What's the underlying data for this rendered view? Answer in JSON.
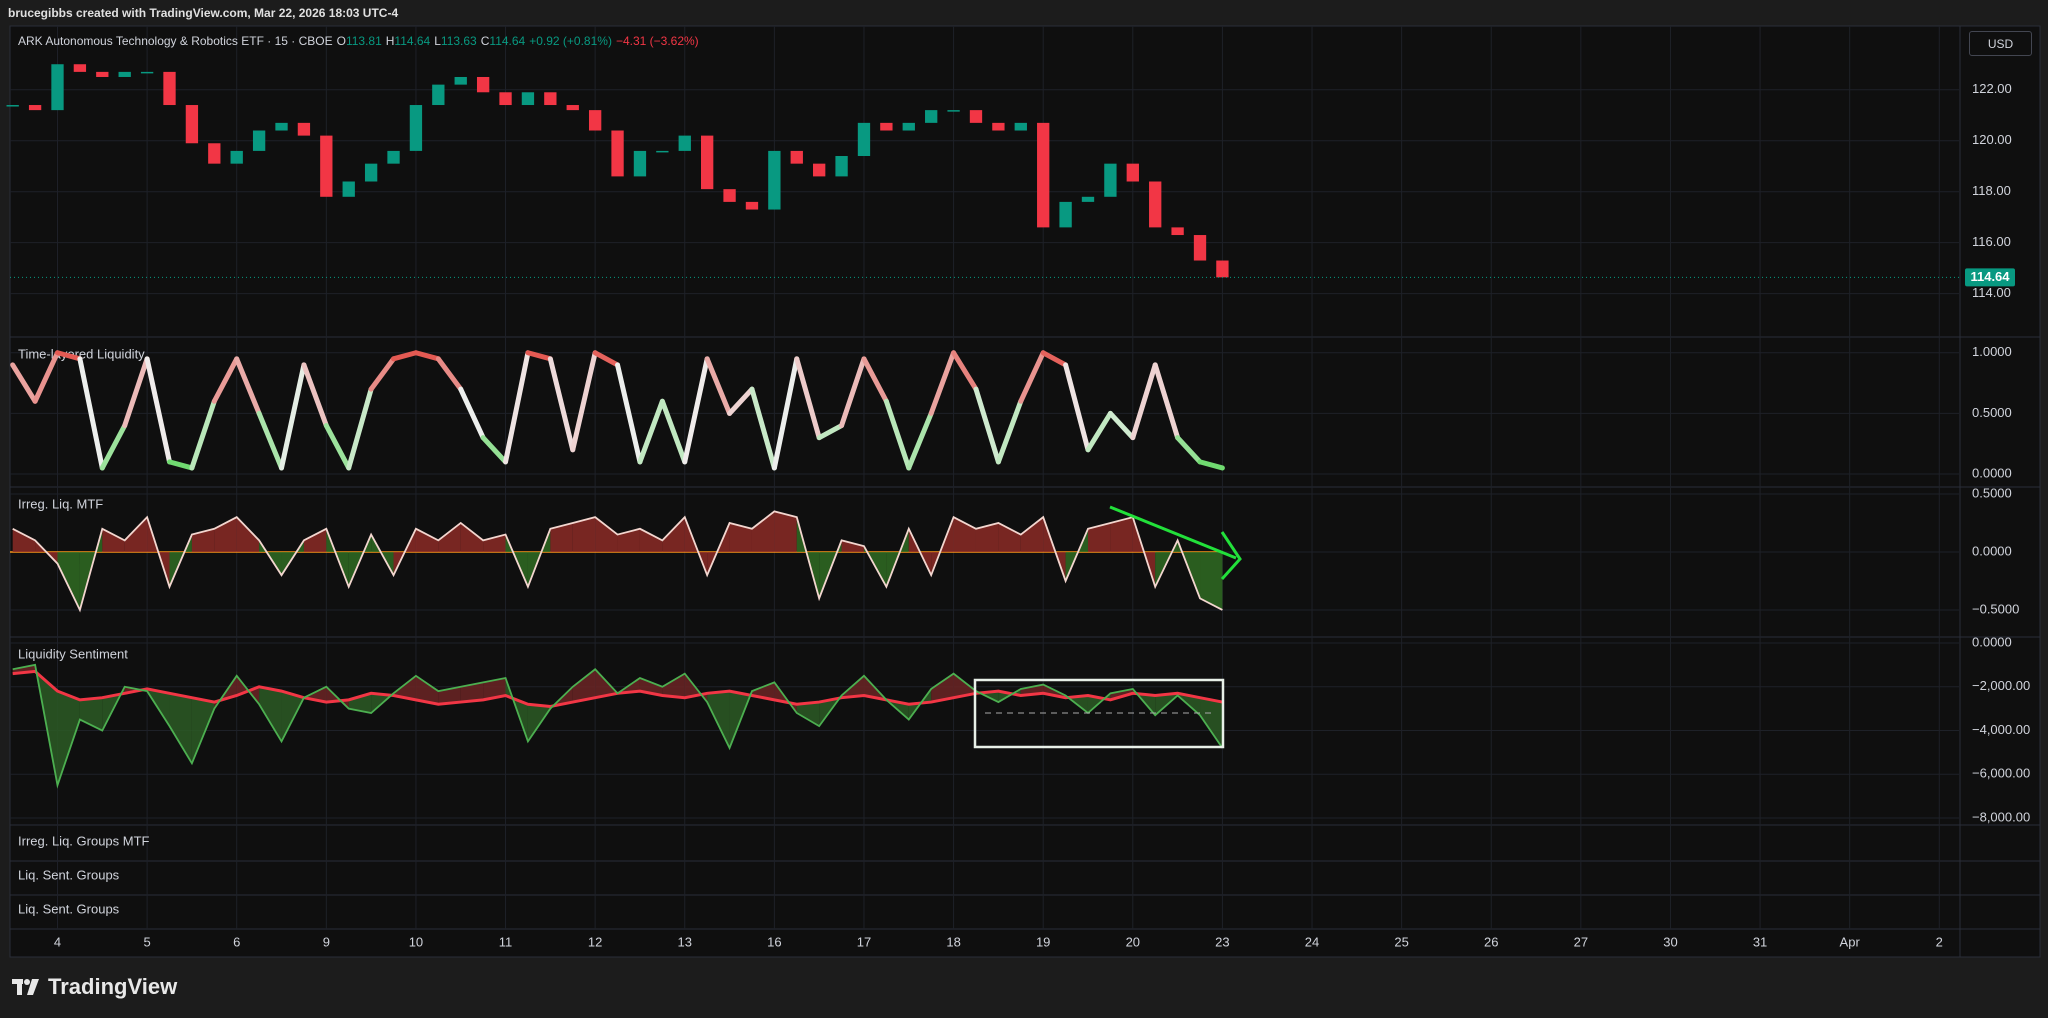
{
  "header": {
    "text": "brucegibbs created with TradingView.com, Mar 22, 2026 18:03 UTC-4"
  },
  "currency": "USD",
  "footer": {
    "logo": "TradingView"
  },
  "empty_panes": [
    "Irreg. Liq. Groups MTF",
    "Liq. Sent. Groups",
    "Liq. Sent. Groups"
  ],
  "chart_data": [
    {
      "type": "candlestick",
      "title": "ARK Autonomous Technology & Robotics ETF · 15 · CBOE",
      "legend": [
        {
          "label": "O",
          "value": 113.81
        },
        {
          "label": "H",
          "value": 114.64
        },
        {
          "label": "L",
          "value": 113.63
        },
        {
          "label": "C",
          "value": 114.64
        }
      ],
      "change": "+0.92 (+0.81%)",
      "change_total": "−4.31 (−3.62%)",
      "up_color": "#089981",
      "down_color": "#f23645",
      "grid": true,
      "x": [
        -0.5,
        -0.25,
        0,
        0.25,
        0.5,
        0.75,
        1,
        1.25,
        1.5,
        1.75,
        2,
        2.25,
        2.5,
        2.75,
        3,
        3.25,
        3.5,
        3.75,
        4,
        4.25,
        4.5,
        4.75,
        5,
        5.25,
        5.5,
        5.75,
        6,
        6.25,
        6.5,
        6.75,
        7,
        7.25,
        7.5,
        7.75,
        8,
        8.25,
        8.5,
        8.75,
        9,
        9.25,
        9.5,
        9.75,
        10,
        10.25,
        10.5,
        10.75,
        11,
        11.25,
        11.5,
        11.75,
        12,
        12.25,
        12.5,
        12.75,
        13
      ],
      "values": [
        121.4,
        121.2,
        123,
        122.7,
        122.5,
        122.7,
        122.7,
        121.4,
        119.9,
        119.1,
        119.6,
        120.4,
        120.7,
        120.2,
        117.8,
        118.4,
        119.1,
        119.6,
        121.4,
        122.2,
        122.5,
        121.9,
        121.4,
        121.9,
        121.4,
        121.2,
        120.4,
        118.6,
        119.6,
        119.6,
        120.2,
        118.1,
        117.6,
        117.3,
        119.6,
        119.1,
        118.6,
        119.4,
        120.7,
        120.4,
        120.7,
        121.2,
        121.2,
        120.7,
        120.4,
        120.7,
        116.6,
        117.6,
        117.8,
        119.1,
        118.4,
        116.6,
        116.3,
        115.3,
        114.64
      ],
      "xlim": [
        -0.53,
        21.22
      ],
      "ylim": [
        112.3,
        124.5
      ],
      "yticks": [
        {
          "value": 114,
          "label": "114.00"
        },
        {
          "value": 116,
          "label": "116.00"
        },
        {
          "value": 118,
          "label": "118.00"
        },
        {
          "value": 120,
          "label": "120.00"
        },
        {
          "value": 122,
          "label": "122.00"
        }
      ]
    },
    {
      "type": "gradient_line",
      "title": "Time-layered Liquidity",
      "color_low": "#3bd13b",
      "color_mid": "#f0f0f0",
      "color_high": "#e0281f",
      "grid": true,
      "x": [
        -0.5,
        -0.25,
        0,
        0.25,
        0.5,
        0.75,
        1,
        1.25,
        1.5,
        1.75,
        2,
        2.25,
        2.5,
        2.75,
        3,
        3.25,
        3.5,
        3.75,
        4,
        4.25,
        4.5,
        4.75,
        5,
        5.25,
        5.5,
        5.75,
        6,
        6.25,
        6.5,
        6.75,
        7,
        7.25,
        7.5,
        7.75,
        8,
        8.25,
        8.5,
        8.75,
        9,
        9.25,
        9.5,
        9.75,
        10,
        10.25,
        10.5,
        10.75,
        11,
        11.25,
        11.5,
        11.75,
        12,
        12.25,
        12.5,
        12.75,
        13
      ],
      "values": [
        0.9,
        0.6,
        1.0,
        0.95,
        0.05,
        0.4,
        0.95,
        0.1,
        0.05,
        0.6,
        0.95,
        0.5,
        0.05,
        0.9,
        0.4,
        0.05,
        0.7,
        0.95,
        1.0,
        0.95,
        0.7,
        0.3,
        0.1,
        1.0,
        0.95,
        0.2,
        1.0,
        0.9,
        0.1,
        0.6,
        0.1,
        0.95,
        0.5,
        0.7,
        0.05,
        0.95,
        0.3,
        0.4,
        0.95,
        0.6,
        0.05,
        0.5,
        1.0,
        0.7,
        0.1,
        0.6,
        1.0,
        0.9,
        0.2,
        0.5,
        0.3,
        0.9,
        0.3,
        0.1,
        0.05
      ],
      "xlim": [
        -0.53,
        21.22
      ],
      "ylim": [
        -0.107,
        1.13
      ],
      "yticks": [
        {
          "value": 0,
          "label": "0.0000"
        },
        {
          "value": 0.5,
          "label": "0.5000"
        },
        {
          "value": 1,
          "label": "1.0000"
        }
      ]
    },
    {
      "type": "oscillator",
      "title": "Irreg. Liq. MTF",
      "line_color": "#f3d6cf",
      "fill_pos": "#8b2a26",
      "fill_neg": "#2f6b22",
      "zero_line_color": "#f7931a",
      "grid": true,
      "x": [
        -0.5,
        -0.25,
        0,
        0.25,
        0.5,
        0.75,
        1,
        1.25,
        1.5,
        1.75,
        2,
        2.25,
        2.5,
        2.75,
        3,
        3.25,
        3.5,
        3.75,
        4,
        4.25,
        4.5,
        4.75,
        5,
        5.25,
        5.5,
        5.75,
        6,
        6.25,
        6.5,
        6.75,
        7,
        7.25,
        7.5,
        7.75,
        8,
        8.25,
        8.5,
        8.75,
        9,
        9.25,
        9.5,
        9.75,
        10,
        10.25,
        10.5,
        10.75,
        11,
        11.25,
        11.5,
        11.75,
        12,
        12.25,
        12.5,
        12.75,
        13
      ],
      "values": [
        0.2,
        0.1,
        -0.1,
        -0.5,
        0.2,
        0.1,
        0.3,
        -0.3,
        0.15,
        0.2,
        0.3,
        0.1,
        -0.2,
        0.1,
        0.2,
        -0.3,
        0.15,
        -0.2,
        0.2,
        0.1,
        0.25,
        0.1,
        0.15,
        -0.3,
        0.2,
        0.25,
        0.3,
        0.15,
        0.2,
        0.1,
        0.3,
        -0.2,
        0.25,
        0.2,
        0.35,
        0.3,
        -0.4,
        0.1,
        0.05,
        -0.3,
        0.2,
        -0.2,
        0.3,
        0.2,
        0.25,
        0.15,
        0.3,
        -0.25,
        0.2,
        0.25,
        0.3,
        -0.3,
        0.1,
        -0.4,
        -0.5
      ],
      "xlim": [
        -0.53,
        21.22
      ],
      "ylim": [
        -0.733,
        0.56
      ],
      "yticks": [
        {
          "value": -0.5,
          "label": "−0.5000"
        },
        {
          "value": 0,
          "label": "0.0000"
        },
        {
          "value": 0.5,
          "label": "0.5000"
        }
      ]
    },
    {
      "type": "sentiment",
      "title": "Liquidity Sentiment",
      "fill_above": "#6b2424",
      "fill_below": "#2c5a25",
      "grid": true,
      "x": [
        -0.5,
        -0.25,
        0,
        0.25,
        0.5,
        0.75,
        1,
        1.25,
        1.5,
        1.75,
        2,
        2.25,
        2.5,
        2.75,
        3,
        3.25,
        3.5,
        3.75,
        4,
        4.25,
        4.5,
        4.75,
        5,
        5.25,
        5.5,
        5.75,
        6,
        6.25,
        6.5,
        6.75,
        7,
        7.25,
        7.5,
        7.75,
        8,
        8.25,
        8.5,
        8.75,
        9,
        9.25,
        9.5,
        9.75,
        10,
        10.25,
        10.5,
        10.75,
        11,
        11.25,
        11.5,
        11.75,
        12,
        12.25,
        12.5,
        12.75,
        13
      ],
      "series": [
        {
          "color": "#f23645",
          "values": [
            -1400,
            -1300,
            -2200,
            -2600,
            -2500,
            -2300,
            -2100,
            -2300,
            -2500,
            -2700,
            -2400,
            -2000,
            -2200,
            -2500,
            -2700,
            -2600,
            -2300,
            -2400,
            -2600,
            -2800,
            -2700,
            -2600,
            -2400,
            -2800,
            -2900,
            -2700,
            -2500,
            -2300,
            -2200,
            -2400,
            -2500,
            -2300,
            -2200,
            -2400,
            -2600,
            -2800,
            -2700,
            -2500,
            -2400,
            -2600,
            -2800,
            -2700,
            -2500,
            -2300,
            -2200,
            -2400,
            -2300,
            -2500,
            -2400,
            -2600,
            -2300,
            -2400,
            -2300,
            -2500,
            -2700
          ]
        },
        {
          "color": "#4caf50",
          "values": [
            -1200,
            -1000,
            -6500,
            -3500,
            -4000,
            -2000,
            -2200,
            -3800,
            -5500,
            -3000,
            -1500,
            -2800,
            -4500,
            -2500,
            -2000,
            -3000,
            -3200,
            -2300,
            -1500,
            -2200,
            -2000,
            -1800,
            -1600,
            -4500,
            -3000,
            -2000,
            -1200,
            -2300,
            -1600,
            -2000,
            -1400,
            -2700,
            -4800,
            -2200,
            -1800,
            -3200,
            -3800,
            -2400,
            -1500,
            -2600,
            -3500,
            -2100,
            -1400,
            -2200,
            -2700,
            -2100,
            -1900,
            -2400,
            -3200,
            -2300,
            -2100,
            -3300,
            -2400,
            -3300,
            -4800
          ]
        }
      ],
      "xlim": [
        -0.53,
        21.22
      ],
      "ylim": [
        -8320,
        274
      ],
      "yticks": [
        {
          "value": -8000,
          "label": "−8,000.00"
        },
        {
          "value": -6000,
          "label": "−6,000.00"
        },
        {
          "value": -4000,
          "label": "−4,000.00"
        },
        {
          "value": -2000,
          "label": "−2,000.00"
        },
        {
          "value": 0,
          "label": "0.0000"
        }
      ],
      "xticks": [
        {
          "value": 0,
          "label": "4"
        },
        {
          "value": 1,
          "label": "5"
        },
        {
          "value": 2,
          "label": "6"
        },
        {
          "value": 3,
          "label": "9"
        },
        {
          "value": 4,
          "label": "10"
        },
        {
          "value": 5,
          "label": "11"
        },
        {
          "value": 6,
          "label": "12"
        },
        {
          "value": 7,
          "label": "13"
        },
        {
          "value": 8,
          "label": "16"
        },
        {
          "value": 9,
          "label": "17"
        },
        {
          "value": 10,
          "label": "18"
        },
        {
          "value": 11,
          "label": "19"
        },
        {
          "value": 12,
          "label": "20"
        },
        {
          "value": 13,
          "label": "23"
        },
        {
          "value": 14,
          "label": "24"
        },
        {
          "value": 15,
          "label": "25"
        },
        {
          "value": 16,
          "label": "26"
        },
        {
          "value": 17,
          "label": "27"
        },
        {
          "value": 18,
          "label": "30"
        },
        {
          "value": 19,
          "label": "31"
        },
        {
          "value": 20,
          "label": "Apr"
        },
        {
          "value": 21,
          "label": "2"
        }
      ]
    }
  ]
}
